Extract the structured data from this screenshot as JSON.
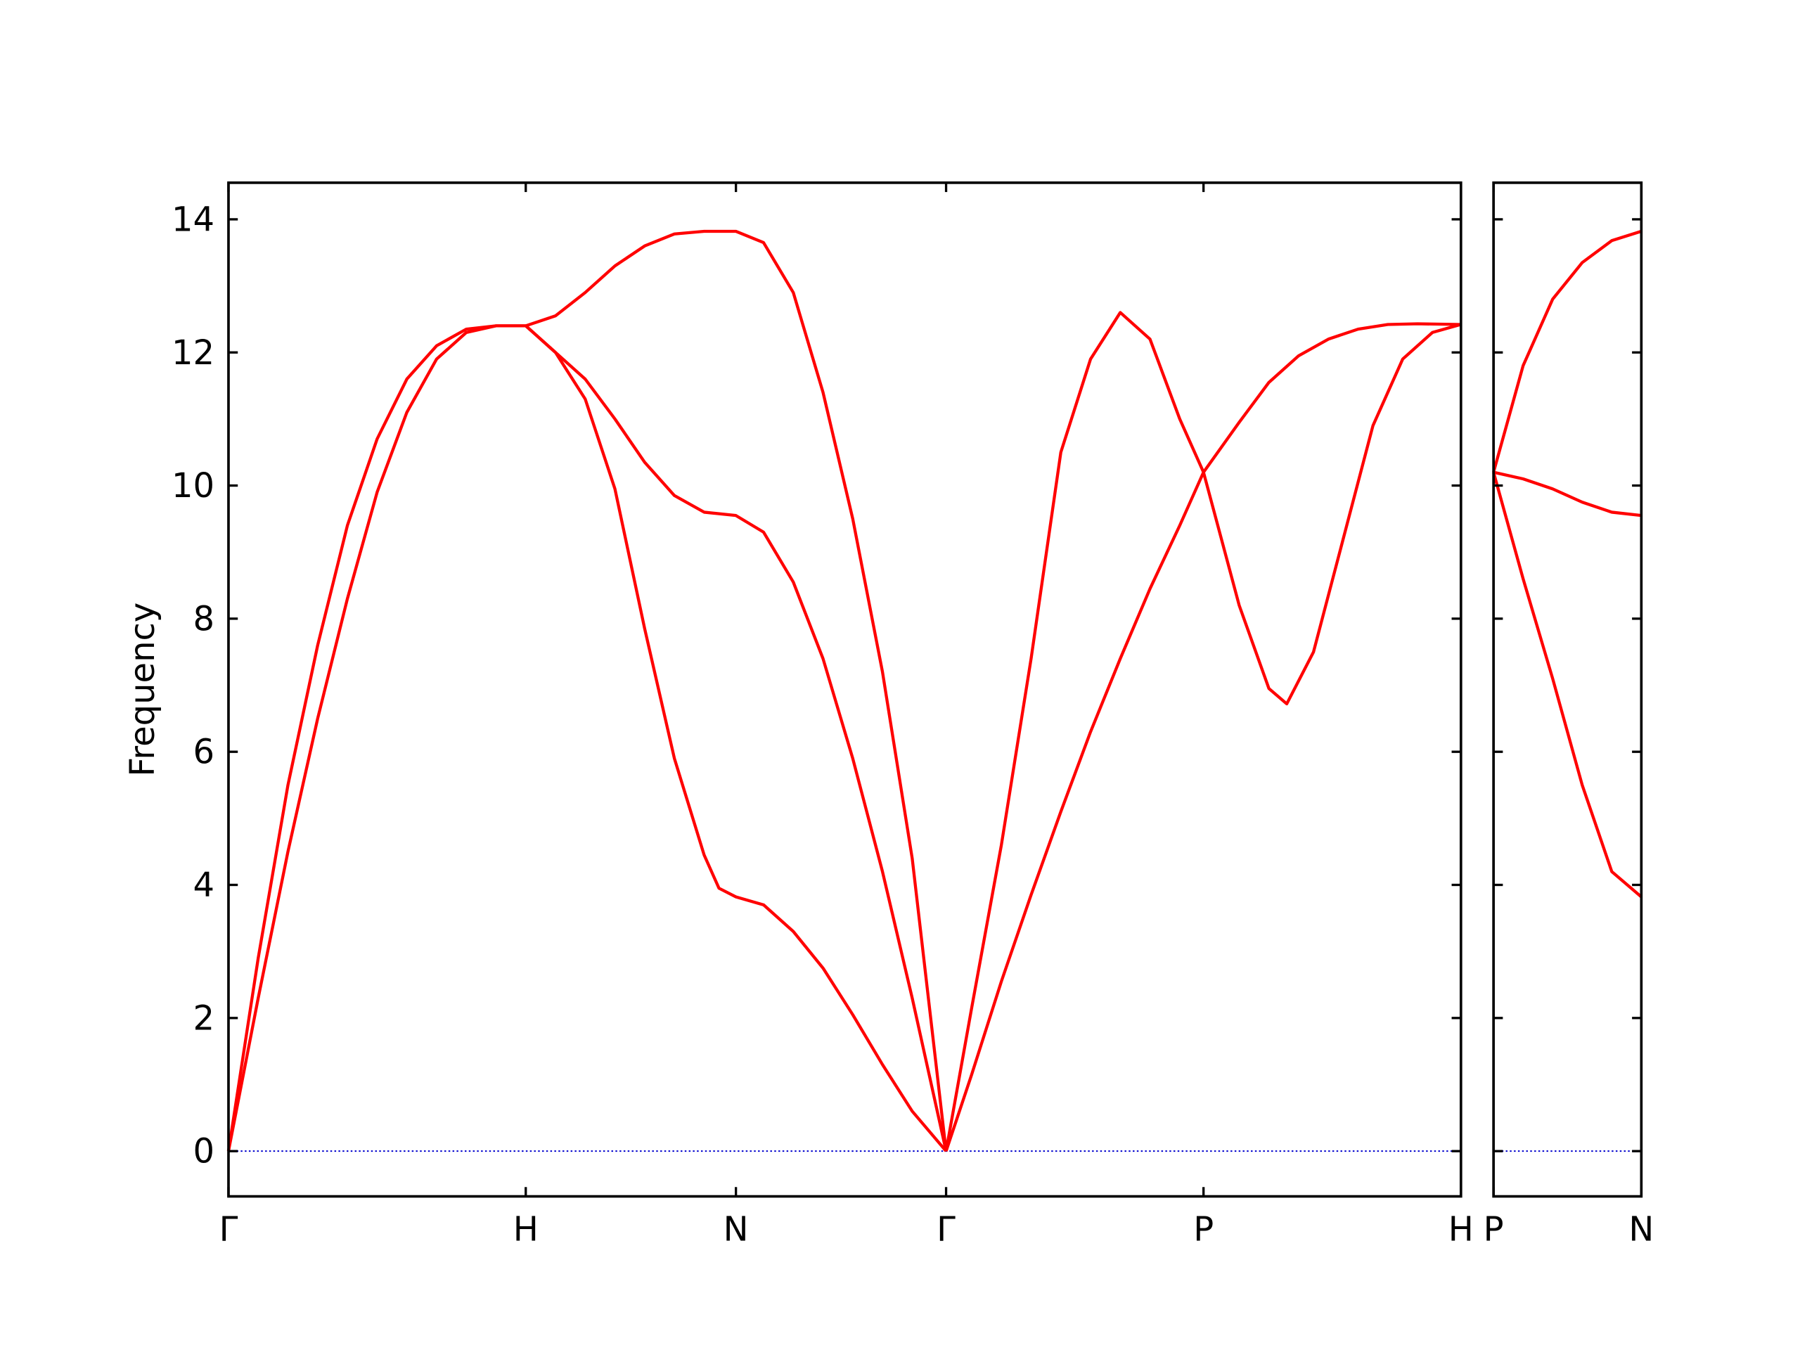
{
  "chart_data": [
    {
      "type": "line",
      "ylabel": "Frequency",
      "xlim": [
        0,
        4.146
      ],
      "ylim": [
        -0.68,
        14.55
      ],
      "xticks": [
        {
          "value": 0,
          "label": "Γ"
        },
        {
          "value": 1,
          "label": "H"
        },
        {
          "value": 1.707,
          "label": "N"
        },
        {
          "value": 2.414,
          "label": "Γ"
        },
        {
          "value": 3.28,
          "label": "P"
        },
        {
          "value": 4.146,
          "label": "H"
        }
      ],
      "yticks": [
        0,
        2,
        4,
        6,
        8,
        10,
        12,
        14
      ],
      "ytick_labels": true,
      "zero_line": {
        "y": 0,
        "color": "#0000cd"
      },
      "series": [
        {
          "color": "#ff0000",
          "x": [
            0,
            0.1,
            0.2,
            0.3,
            0.4,
            0.5,
            0.6,
            0.7,
            0.8,
            0.9,
            1
          ],
          "values": [
            0,
            2.9,
            5.5,
            7.6,
            9.4,
            10.7,
            11.6,
            12.1,
            12.35,
            12.4,
            12.4
          ]
        },
        {
          "color": "#ff0000",
          "x": [
            0,
            0.1,
            0.2,
            0.3,
            0.4,
            0.5,
            0.6,
            0.7,
            0.8,
            0.9,
            1
          ],
          "values": [
            0,
            2.3,
            4.5,
            6.5,
            8.3,
            9.9,
            11.1,
            11.9,
            12.3,
            12.4,
            12.4
          ]
        },
        {
          "color": "#ff0000",
          "x": [
            1,
            1.1,
            1.2,
            1.3,
            1.4,
            1.5,
            1.6,
            1.707,
            1.8,
            1.9,
            2.0,
            2.1,
            2.2,
            2.3,
            2.414
          ],
          "values": [
            12.4,
            12.55,
            12.9,
            13.3,
            13.6,
            13.78,
            13.82,
            13.82,
            13.65,
            12.9,
            11.4,
            9.5,
            7.2,
            4.4,
            0
          ]
        },
        {
          "color": "#ff0000",
          "x": [
            1,
            1.1,
            1.2,
            1.3,
            1.4,
            1.5,
            1.6,
            1.707,
            1.8,
            1.9,
            2.0,
            2.1,
            2.2,
            2.3,
            2.414
          ],
          "values": [
            12.4,
            12.0,
            11.6,
            11.0,
            10.35,
            9.85,
            9.6,
            9.55,
            9.3,
            8.55,
            7.4,
            5.9,
            4.2,
            2.3,
            0
          ]
        },
        {
          "color": "#ff0000",
          "x": [
            1,
            1.1,
            1.2,
            1.3,
            1.4,
            1.5,
            1.6,
            1.65,
            1.707,
            1.8,
            1.9,
            2.0,
            2.1,
            2.2,
            2.3,
            2.414
          ],
          "values": [
            12.4,
            12.0,
            11.3,
            9.95,
            7.85,
            5.9,
            4.45,
            3.95,
            3.82,
            3.7,
            3.3,
            2.75,
            2.05,
            1.3,
            0.6,
            0
          ]
        },
        {
          "color": "#ff0000",
          "x": [
            2.414,
            2.5,
            2.6,
            2.7,
            2.8,
            2.9,
            3.0,
            3.1,
            3.2,
            3.28,
            3.4,
            3.5,
            3.56,
            3.65,
            3.75,
            3.85,
            3.95,
            4.05,
            4.146
          ],
          "values": [
            0,
            2.15,
            4.6,
            7.4,
            10.5,
            11.9,
            12.6,
            12.2,
            11.0,
            10.2,
            8.2,
            6.95,
            6.72,
            7.5,
            9.2,
            10.9,
            11.9,
            12.3,
            12.42
          ]
        },
        {
          "color": "#ff0000",
          "x": [
            2.414,
            2.5,
            2.6,
            2.7,
            2.8,
            2.9,
            3.0,
            3.1,
            3.2,
            3.28,
            3.4,
            3.5,
            3.6,
            3.7,
            3.8,
            3.9,
            4.0,
            4.146
          ],
          "values": [
            0,
            1.15,
            2.55,
            3.85,
            5.1,
            6.3,
            7.4,
            8.45,
            9.4,
            10.2,
            10.95,
            11.55,
            11.95,
            12.2,
            12.35,
            12.42,
            12.43,
            12.42
          ]
        }
      ]
    },
    {
      "type": "line",
      "xlim": [
        4.146,
        4.646
      ],
      "ylim": [
        -0.68,
        14.55
      ],
      "xticks": [
        {
          "value": 4.146,
          "label": "P"
        },
        {
          "value": 4.646,
          "label": "N"
        }
      ],
      "yticks": [
        0,
        2,
        4,
        6,
        8,
        10,
        12,
        14
      ],
      "ytick_labels": false,
      "zero_line": {
        "y": 0,
        "color": "#0000cd"
      },
      "series": [
        {
          "color": "#ff0000",
          "x": [
            4.146,
            4.246,
            4.346,
            4.446,
            4.546,
            4.646
          ],
          "values": [
            10.2,
            11.8,
            12.8,
            13.35,
            13.68,
            13.82
          ]
        },
        {
          "color": "#ff0000",
          "x": [
            4.146,
            4.246,
            4.346,
            4.446,
            4.546,
            4.646
          ],
          "values": [
            10.2,
            10.1,
            9.95,
            9.75,
            9.6,
            9.55
          ]
        },
        {
          "color": "#ff0000",
          "x": [
            4.146,
            4.246,
            4.346,
            4.446,
            4.546,
            4.646
          ],
          "values": [
            10.2,
            8.6,
            7.1,
            5.5,
            4.2,
            3.82
          ]
        }
      ]
    }
  ]
}
